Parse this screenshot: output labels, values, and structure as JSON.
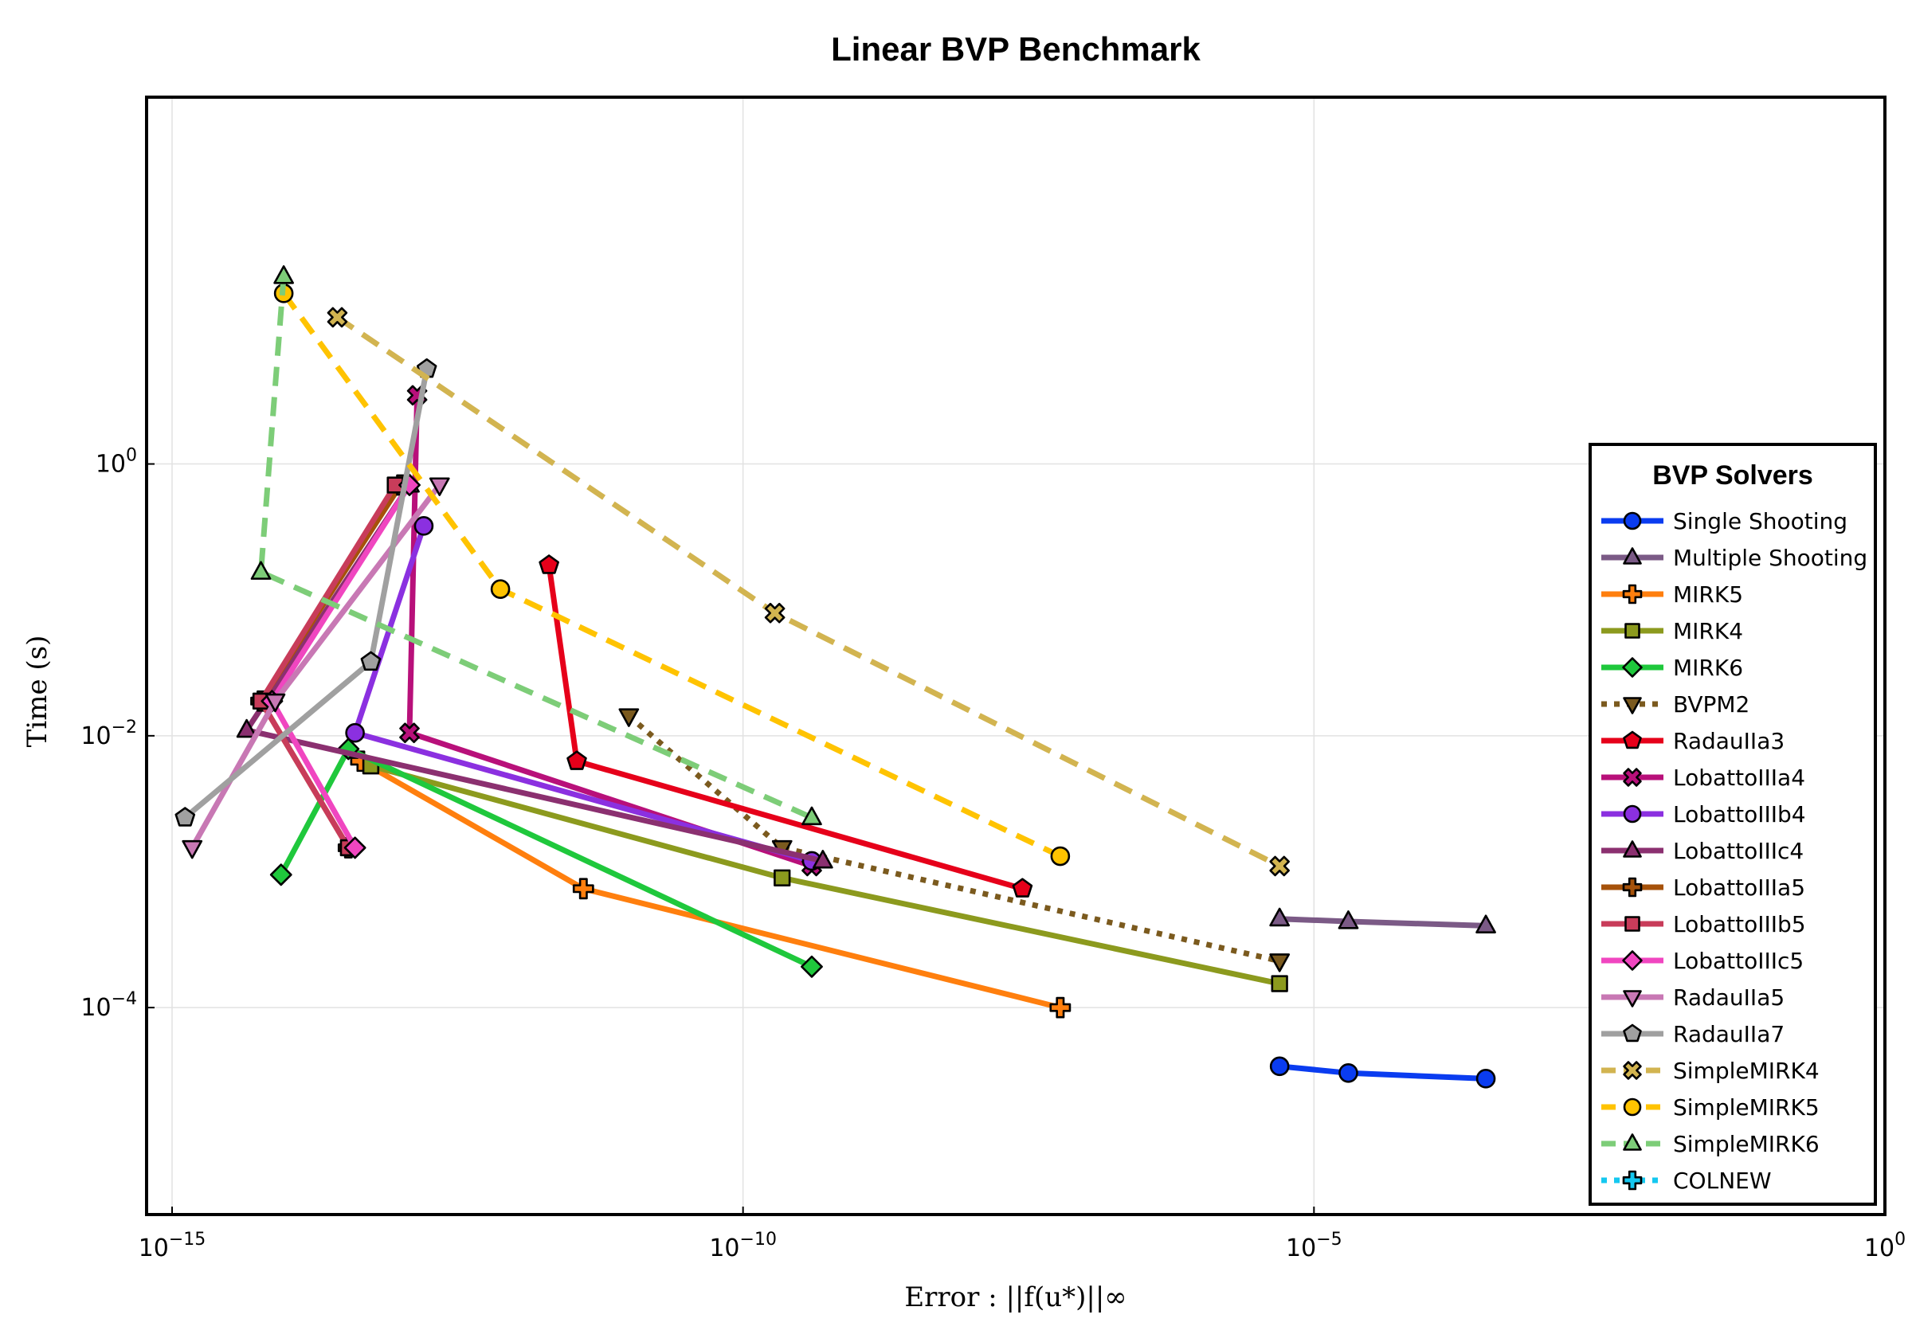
{
  "chart_data": {
    "type": "line",
    "title": "Linear BVP Benchmark",
    "xlabel": "Error : ||f(u*)||∞",
    "ylabel": "Time (s)",
    "xscale": "log10",
    "yscale": "log10",
    "xlim": [
      1e-15,
      1
    ],
    "ylim": [
      3e-06,
      500
    ],
    "x_ticks": [
      {
        "value": 1e-15,
        "base": "10",
        "exp": "−15"
      },
      {
        "value": 1e-10,
        "base": "10",
        "exp": "−10"
      },
      {
        "value": 1e-05,
        "base": "10",
        "exp": "−5"
      },
      {
        "value": 1,
        "base": "10",
        "exp": "0"
      }
    ],
    "y_ticks": [
      {
        "value": 0.0001,
        "base": "10",
        "exp": "−4"
      },
      {
        "value": 0.01,
        "base": "10",
        "exp": "−2"
      },
      {
        "value": 1,
        "base": "10",
        "exp": "0"
      }
    ],
    "grid": true,
    "legend_title": "BVP Solvers",
    "legend_position": "right",
    "series": [
      {
        "name": "Single Shooting",
        "color": "#0a3cf0",
        "marker": "circle",
        "dash": "solid",
        "points": [
          [
            5e-06,
            3.7e-05
          ],
          [
            2e-05,
            3.3e-05
          ],
          [
            0.00032,
            3e-05
          ]
        ]
      },
      {
        "name": "Multiple Shooting",
        "color": "#7b5a86",
        "marker": "triangle-up",
        "dash": "solid",
        "points": [
          [
            5e-06,
            0.00045
          ],
          [
            2e-05,
            0.00043
          ],
          [
            0.00032,
            0.0004
          ]
        ]
      },
      {
        "name": "MIRK5",
        "color": "#ff7f0e",
        "marker": "cross",
        "dash": "solid",
        "points": [
          [
            4.5e-14,
            0.0065
          ],
          [
            4e-12,
            0.00075
          ],
          [
            6e-08,
            0.0001
          ]
        ]
      },
      {
        "name": "MIRK4",
        "color": "#8c9a1e",
        "marker": "square",
        "dash": "solid",
        "points": [
          [
            5.5e-14,
            0.006
          ],
          [
            2.2e-10,
            0.0009
          ],
          [
            5e-06,
            0.00015
          ]
        ]
      },
      {
        "name": "MIRK6",
        "color": "#1fc83c",
        "marker": "diamond",
        "dash": "solid",
        "points": [
          [
            9e-15,
            0.00095
          ],
          [
            3.5e-14,
            0.008
          ],
          [
            4e-10,
            0.0002
          ]
        ]
      },
      {
        "name": "BVPM2",
        "color": "#7b5a1e",
        "marker": "triangle-down",
        "dash": "dot",
        "points": [
          [
            1e-11,
            0.014
          ],
          [
            2.2e-10,
            0.0015
          ],
          [
            5e-06,
            0.00022
          ]
        ]
      },
      {
        "name": "RadauIIa3",
        "color": "#e6001a",
        "marker": "pentagon",
        "dash": "solid",
        "points": [
          [
            2e-12,
            0.18
          ],
          [
            3.5e-12,
            0.0065
          ],
          [
            2.8e-08,
            0.00075
          ]
        ]
      },
      {
        "name": "LobattoIIIa4",
        "color": "#b8107a",
        "marker": "x",
        "dash": "solid",
        "points": [
          [
            1.4e-13,
            3.2
          ],
          [
            1.2e-13,
            0.0105
          ],
          [
            4e-10,
            0.0011
          ]
        ]
      },
      {
        "name": "LobattoIIIb4",
        "color": "#8b30e0",
        "marker": "circle",
        "dash": "solid",
        "points": [
          [
            1.6e-13,
            0.35
          ],
          [
            4e-14,
            0.0105
          ],
          [
            4e-10,
            0.0012
          ]
        ]
      },
      {
        "name": "LobattoIIIc4",
        "color": "#8b3070",
        "marker": "triangle-up",
        "dash": "solid",
        "points": [
          [
            1.2e-13,
            0.7
          ],
          [
            4.5e-15,
            0.011
          ],
          [
            5e-10,
            0.0012
          ]
        ]
      },
      {
        "name": "LobattoIIIa5",
        "color": "#a6520a",
        "marker": "cross",
        "dash": "solid",
        "points": [
          [
            1e-13,
            0.7
          ],
          [
            6e-15,
            0.018
          ],
          [
            3.5e-14,
            0.0015
          ]
        ]
      },
      {
        "name": "LobattoIIIb5",
        "color": "#c83c5a",
        "marker": "square",
        "dash": "solid",
        "points": [
          [
            9e-14,
            0.7
          ],
          [
            6e-15,
            0.018
          ],
          [
            3.5e-14,
            0.0015
          ]
        ]
      },
      {
        "name": "LobattoIIIc5",
        "color": "#f046c0",
        "marker": "diamond",
        "dash": "solid",
        "points": [
          [
            1.2e-13,
            0.7
          ],
          [
            7.5e-15,
            0.018
          ],
          [
            4e-14,
            0.0015
          ]
        ]
      },
      {
        "name": "RadauIIa5",
        "color": "#c878b4",
        "marker": "triangle-down",
        "dash": "solid",
        "points": [
          [
            2.2e-13,
            0.7
          ],
          [
            8e-15,
            0.018
          ],
          [
            1.5e-15,
            0.0015
          ]
        ]
      },
      {
        "name": "RadauIIa7",
        "color": "#a0a0a0",
        "marker": "pentagon",
        "dash": "solid",
        "points": [
          [
            1.7e-13,
            5.0
          ],
          [
            5.5e-14,
            0.035
          ],
          [
            1.3e-15,
            0.0025
          ]
        ]
      },
      {
        "name": "SimpleMIRK4",
        "color": "#d2b450",
        "marker": "x",
        "dash": "dash",
        "points": [
          [
            2.8e-14,
            12.0
          ],
          [
            1.9e-10,
            0.08
          ],
          [
            5e-06,
            0.0011
          ]
        ]
      },
      {
        "name": "SimpleMIRK5",
        "color": "#ffc300",
        "marker": "circle",
        "dash": "dash",
        "points": [
          [
            9.5e-15,
            18.0
          ],
          [
            7.5e-13,
            0.12
          ],
          [
            6e-08,
            0.0013
          ]
        ]
      },
      {
        "name": "SimpleMIRK6",
        "color": "#7dcd78",
        "marker": "triangle-up",
        "dash": "dash",
        "points": [
          [
            9.5e-15,
            24.0
          ],
          [
            6e-15,
            0.16
          ],
          [
            4e-10,
            0.0025
          ]
        ]
      },
      {
        "name": "COLNEW",
        "color": "#15c8f0",
        "marker": "cross",
        "dash": "dot",
        "points": []
      }
    ]
  }
}
